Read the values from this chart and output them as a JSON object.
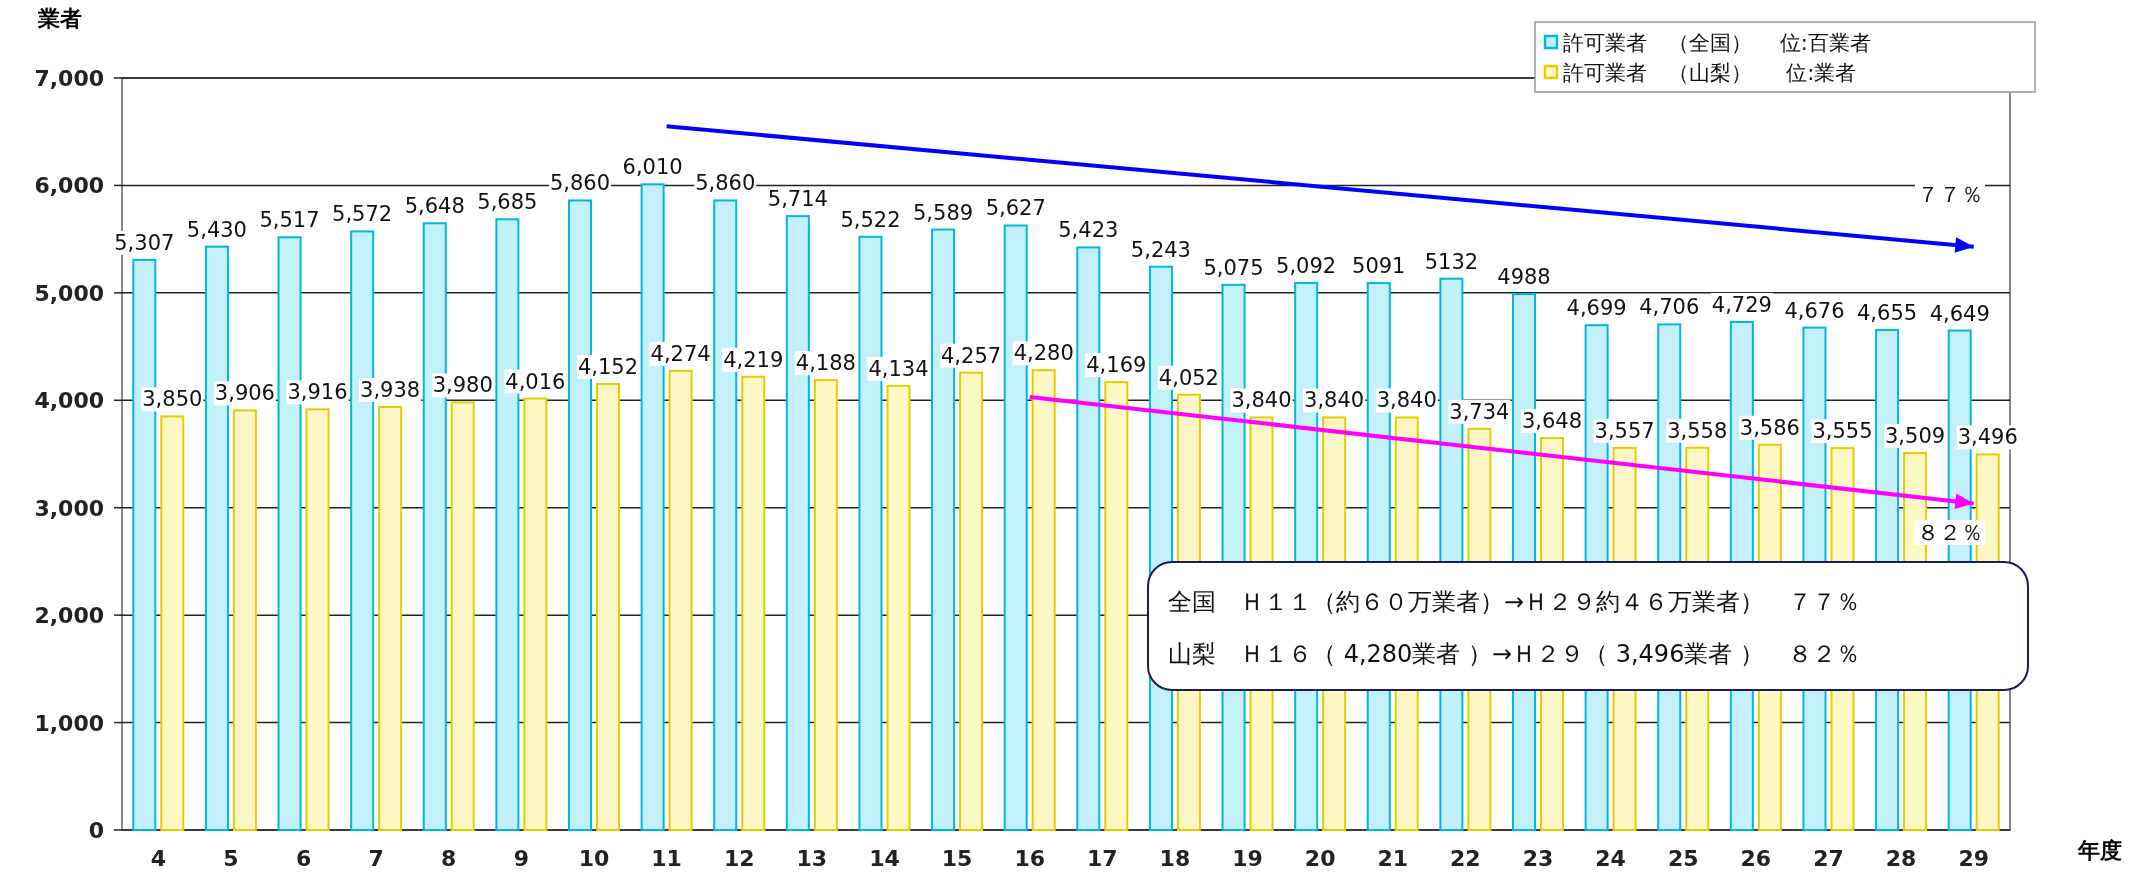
{
  "chart_data": {
    "type": "bar",
    "xlabel": "年度",
    "ylabel": "業者",
    "categories": [
      "4",
      "5",
      "6",
      "7",
      "8",
      "9",
      "10",
      "11",
      "12",
      "13",
      "14",
      "15",
      "16",
      "17",
      "18",
      "19",
      "20",
      "21",
      "22",
      "23",
      "24",
      "25",
      "26",
      "27",
      "28",
      "29"
    ],
    "series": [
      {
        "name": "許可業者　（全国）　 位:百業者",
        "color": "#c4f0fa",
        "values": [
          5307,
          5430,
          5517,
          5572,
          5648,
          5685,
          5860,
          6010,
          5860,
          5714,
          5522,
          5589,
          5627,
          5423,
          5243,
          5075,
          5092,
          5091,
          5132,
          4988,
          4699,
          4706,
          4729,
          4676,
          4655,
          4649
        ],
        "value_labels": [
          "5,307",
          "5,430",
          "5,517",
          "5,572",
          "5,648",
          "5,685",
          "5,860",
          "6,010",
          "5,860",
          "5,714",
          "5,522",
          "5,589",
          "5,627",
          "5,423",
          "5,243",
          "5,075",
          "5,092",
          "5091",
          "5132",
          "4988",
          "4,699",
          "4,706",
          "4,729",
          "4,676",
          "4,655",
          "4,649"
        ]
      },
      {
        "name": "許可業者　（山梨）　  位:業者",
        "color": "#fcf7c4",
        "values": [
          3850,
          3906,
          3916,
          3938,
          3980,
          4016,
          4152,
          4274,
          4219,
          4188,
          4134,
          4257,
          4280,
          4169,
          4052,
          3840,
          3840,
          3840,
          3734,
          3648,
          3557,
          3558,
          3586,
          3555,
          3509,
          3496
        ],
        "value_labels": [
          "3,850",
          "3,906",
          "3,916",
          "3,938",
          "3,980",
          "4,016",
          "4,152",
          "4,274",
          "4,219",
          "4,188",
          "4,134",
          "4,257",
          "4,280",
          "4,169",
          "4,052",
          "3,840",
          "3,840",
          "3,840",
          "3,734",
          "3,648",
          "3,557",
          "3,558",
          "3,586",
          "3,555",
          "3,509",
          "3,496"
        ]
      },
      {
        "type": "line",
        "color": "#0000ff",
        "x": [
          "11",
          "29"
        ],
        "values": [
          6550,
          5430
        ]
      },
      {
        "type": "line",
        "color": "#ff00ff",
        "x": [
          "16",
          "29"
        ],
        "values": [
          4030,
          3040
        ]
      }
    ],
    "ylim": [
      0,
      7000
    ],
    "yticks": [
      0,
      {
        "value": 1000,
        "label": "1,000"
      },
      {
        "value": 2000,
        "label": "2,000"
      },
      {
        "value": 3000,
        "label": "3,000"
      },
      {
        "value": 4000,
        "label": "4,000"
      },
      {
        "value": 5000,
        "label": "5,000"
      },
      {
        "value": 6000,
        "label": "6,000"
      },
      {
        "value": 7000,
        "label": "7,000"
      }
    ],
    "grid": "y",
    "legend": "top right",
    "annotations": [
      "７７％",
      "８２％",
      "全国　Ｈ１１（約６０万業者）→Ｈ２９約４６万業者）　７７％",
      "山梨　Ｈ１６（ 4,280業者 ）→Ｈ２９（ 3,496業者 ）　８２％"
    ]
  }
}
